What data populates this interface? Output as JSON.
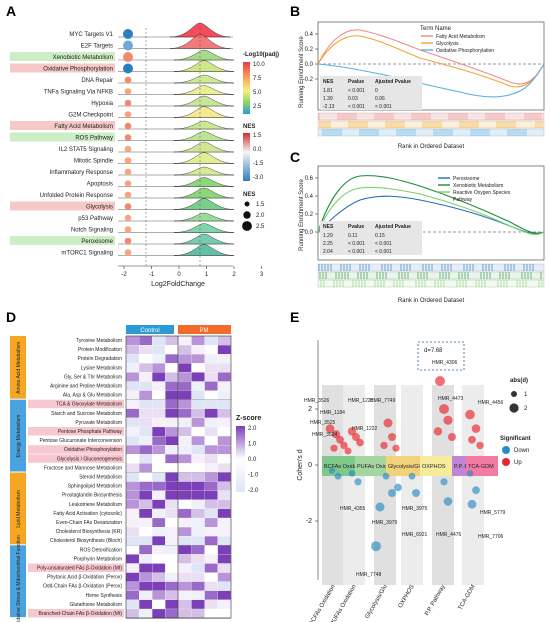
{
  "panels": {
    "A": {
      "letter": "A",
      "x_label": "Log2FoldChange",
      "x_ticks": [
        "-2",
        "-1",
        "0",
        "1",
        "2",
        "3"
      ],
      "pathways": [
        {
          "name": "MYC Targets V1",
          "highlight": "none"
        },
        {
          "name": "E2F Targets",
          "highlight": "none"
        },
        {
          "name": "Xenobiotic Metabolism",
          "highlight": "green"
        },
        {
          "name": "Oxidative Phosphorylation",
          "highlight": "red"
        },
        {
          "name": "DNA Repair",
          "highlight": "none"
        },
        {
          "name": "TNFa Signaling Via NFKB",
          "highlight": "none"
        },
        {
          "name": "Hypoxia",
          "highlight": "none"
        },
        {
          "name": "G2M Checkpoint",
          "highlight": "none"
        },
        {
          "name": "Fatty Acid Metabolism",
          "highlight": "red"
        },
        {
          "name": "ROS Pathway",
          "highlight": "green"
        },
        {
          "name": "IL2 STAT5 Signaling",
          "highlight": "none"
        },
        {
          "name": "Mitotic Spindle",
          "highlight": "none"
        },
        {
          "name": "Inflammatory Response",
          "highlight": "none"
        },
        {
          "name": "Apoptosis",
          "highlight": "none"
        },
        {
          "name": "Unfolded Protein Response",
          "highlight": "none"
        },
        {
          "name": "Glycolysis",
          "highlight": "red"
        },
        {
          "name": "p53 Pathway",
          "highlight": "none"
        },
        {
          "name": "Notch Signaling",
          "highlight": "none"
        },
        {
          "name": "Peroxisome",
          "highlight": "green"
        },
        {
          "name": "mTORC1 Signaling",
          "highlight": "none"
        }
      ],
      "legend": {
        "padj_title": "-Log10(padj)",
        "padj_ticks": [
          "10.0",
          "7.5",
          "5.0",
          "2.5"
        ],
        "nes_title": "NES",
        "nes_ticks": [
          "1.5",
          "0.0",
          "-1.5",
          "-3.0"
        ],
        "size_title": "NES",
        "size_ticks": [
          "1.5",
          "2.0",
          "2.5"
        ]
      }
    },
    "B": {
      "letter": "B",
      "y_label": "Running Enrichment Score",
      "x_label": "Rank in Ordered Dataset",
      "y_ticks": [
        "0.4",
        "0.2",
        "0.0",
        "-0.2"
      ],
      "legend_title": "Term Name",
      "terms": [
        {
          "name": "Fatty Acid Metabolism",
          "color": "#f08a8a"
        },
        {
          "name": "Glycolysis",
          "color": "#f3a531"
        },
        {
          "name": "Oxidative Phosphorylation",
          "color": "#5aaee0"
        }
      ],
      "table": {
        "headers": [
          "NES",
          "Pvalue",
          "Ajusted Pvalue"
        ],
        "rows": [
          [
            "1.81",
            "< 0.001",
            "0"
          ],
          [
            "1.39",
            "0.03",
            "0.06"
          ],
          [
            "-2.13",
            "< 0.001",
            "< 0.001"
          ]
        ]
      }
    },
    "C": {
      "letter": "C",
      "y_label": "Running Enrichment Score",
      "x_label": "Rank in Ordered Dataset",
      "y_ticks": [
        "0.6",
        "0.4",
        "0.2",
        "0.0"
      ],
      "terms": [
        {
          "name": "Peroxisome",
          "color": "#1f6fb4"
        },
        {
          "name": "Xenobiotic Metabolism",
          "color": "#1f8a3a"
        },
        {
          "name": "Reactive Oxygen Species",
          "color": "#7ccf6a"
        },
        {
          "name": "Pathway",
          "color": ""
        }
      ],
      "table": {
        "headers": [
          "NES",
          "Pvalue",
          "Ajusted Pvalue"
        ],
        "rows": [
          [
            "1.29",
            "0.11",
            "0.15"
          ],
          [
            "2.25",
            "< 0.001",
            "< 0.001"
          ],
          [
            "2.04",
            "< 0.001",
            "< 0.001"
          ]
        ]
      }
    },
    "D": {
      "letter": "D",
      "columns": [
        "Control",
        "PM"
      ],
      "legend_title": "Z-score",
      "legend_ticks": [
        "2.0",
        "1.0",
        "0.0",
        "-1.0",
        "-2.0"
      ],
      "groups": [
        {
          "label": "Amino Acid Metabolism",
          "color": "#f5a623",
          "rows": [
            "Tyrosine Metabolism",
            "Protein Modification",
            "Protein Degradation",
            "Lysine Metabolism",
            "Gly, Ser & Thr Metabolism",
            "Arginine and Proline Metabolism",
            "Ala, Asp & Glu Metabolism"
          ]
        },
        {
          "label": "Energy Metabolism",
          "color": "#4aa3df",
          "rows": [
            "TCA & Glyoxylate Metabolism",
            "Starch and Sucrose Metabolism",
            "Pyruvate Metabolism",
            "Pentose Phosphate Pathway",
            "Pentose Glucuronate Interconversion",
            "Oxidative Phosphorylation",
            "Glycolysis / Gluconeogenesis",
            "Fructose and Mannose Metabolism"
          ]
        },
        {
          "label": "Lipid Metabolism",
          "color": "#f5a623",
          "rows": [
            "Steroid Metabolism",
            "Sphingolipid Metabolism",
            "Prostaglandin Biosynthesis",
            "Leukotriene Metabolism",
            "Fatty Acid Activation (cytosolic)",
            "Even-Chain FAs Desaturation",
            "Cholesterol Biosynthesis (KR)",
            "Cholesterol Biosynthesis (Bloch)"
          ]
        },
        {
          "label": "Oxidative Stress & Mitochondrial Function",
          "color": "#4aa3df",
          "rows": [
            "ROS Detoxification",
            "Porphyrin Metabolism",
            "Poly-unsaturated FAs β-Oxidation (Mt)",
            "Phytanic Acid β-Oxidation (Perox)",
            "Odd-Chain FAs β-Oxidation (Perox)",
            "Heme Synthesis",
            "Glutathione Metabolism",
            "Branched-Chain FAs β-Oxidation (Mt)"
          ]
        }
      ],
      "highlighted_rows": [
        "TCA & Glyoxylate Metabolism",
        "Pentose Phosphate Pathway",
        "Oxidative Phosphorylation",
        "Glycolysis / Gluconeogenesis",
        "Poly-unsaturated FAs β-Oxidation (Mt)",
        "Branched-Chain FAs β-Oxidation (Mt)"
      ]
    },
    "E": {
      "letter": "E",
      "y_label": "Cohen's d",
      "y_ticks": [
        "2",
        "0",
        "-2"
      ],
      "categories": [
        "BCFAs Oxidation",
        "PUFAs Oxidation",
        "Glycolysis/Glu",
        "OXPHOS",
        "P.P. Pathway",
        "TCA-GDM"
      ],
      "band_labels": [
        {
          "text": "BCFAs Oxidation",
          "color": "#7dc88a"
        },
        {
          "text": "PUFAs Oxidation",
          "color": "#a5d6a0"
        },
        {
          "text": "Glycolysis/Glu",
          "color": "#f2d27a"
        },
        {
          "text": "OXPHOS",
          "color": "#f7ec9c"
        },
        {
          "text": "P.P. Pathway",
          "color": "#c084d8"
        },
        {
          "text": "TCA-GDM",
          "color": "#f27aa5"
        }
      ],
      "annotation": "d=7.68",
      "point_labels": [
        {
          "text": "HMR_3526"
        },
        {
          "text": "HMR_1184"
        },
        {
          "text": "HMR_3525"
        },
        {
          "text": "HMR_3524"
        },
        {
          "text": "HMR_1228"
        },
        {
          "text": "HMR_1222"
        },
        {
          "text": "HMR_7749"
        },
        {
          "text": "HMR_4306"
        },
        {
          "text": "HMR_4473"
        },
        {
          "text": "HMR_4456"
        },
        {
          "text": "HMR_4355"
        },
        {
          "text": "HMR_3979"
        },
        {
          "text": "HMR_3975"
        },
        {
          "text": "HMR_6921"
        },
        {
          "text": "HMR_4476"
        },
        {
          "text": "HMR_5779"
        },
        {
          "text": "HMR_7706"
        },
        {
          "text": "HMR_7748"
        }
      ],
      "legend_size_title": "abs(d)",
      "legend_size_ticks": [
        "1",
        "2"
      ],
      "legend_sig_title": "Significant",
      "legend_sig": [
        {
          "label": "Down",
          "color": "#2b8cc4"
        },
        {
          "label": "Up",
          "color": "#e8262d"
        }
      ]
    }
  }
}
